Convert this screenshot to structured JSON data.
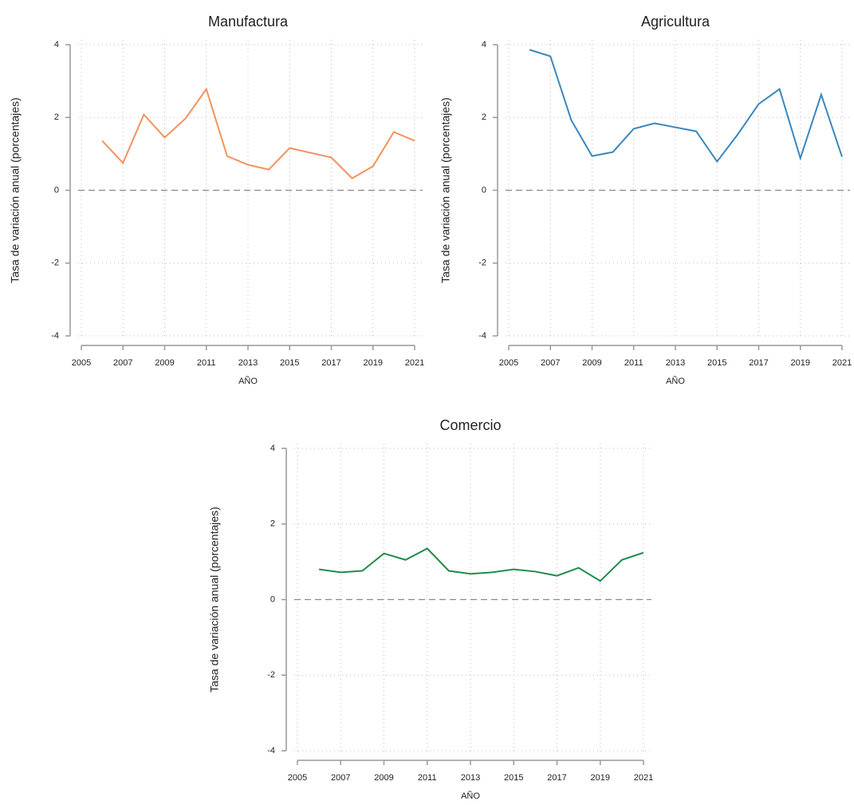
{
  "chart_data": [
    {
      "type": "line",
      "title": "Manufactura",
      "x_label": "AÑO",
      "y_label": "Tasa de variación anual (porcentajes)",
      "x": [
        2006,
        2007,
        2008,
        2009,
        2010,
        2011,
        2012,
        2013,
        2014,
        2015,
        2016,
        2017,
        2018,
        2019,
        2020,
        2021
      ],
      "values": [
        1.36,
        0.75,
        2.08,
        1.45,
        1.97,
        2.78,
        0.94,
        0.7,
        0.57,
        1.16,
        1.03,
        0.9,
        0.33,
        0.66,
        1.6,
        1.36
      ],
      "color": "#f4925e",
      "xlim": [
        2005,
        2021
      ],
      "xticks": [
        2005,
        2007,
        2009,
        2011,
        2013,
        2015,
        2017,
        2019,
        2021
      ],
      "ylim": [
        -4,
        4
      ],
      "yticks": [
        -4,
        -2,
        0,
        2,
        4
      ],
      "grid": true,
      "reference_line": 0
    },
    {
      "type": "line",
      "title": "Agricultura",
      "x_label": "AÑO",
      "y_label": "Tasa de variación anual (porcentajes)",
      "x": [
        2006,
        2007,
        2008,
        2009,
        2010,
        2011,
        2012,
        2013,
        2014,
        2015,
        2016,
        2017,
        2018,
        2019,
        2020,
        2021
      ],
      "values": [
        3.86,
        3.68,
        1.93,
        0.94,
        1.05,
        1.69,
        1.84,
        1.73,
        1.62,
        0.79,
        1.54,
        2.37,
        2.78,
        0.88,
        2.63,
        0.92
      ],
      "color": "#3a87be",
      "xlim": [
        2005,
        2021
      ],
      "xticks": [
        2005,
        2007,
        2009,
        2011,
        2013,
        2015,
        2017,
        2019,
        2021
      ],
      "ylim": [
        -4,
        4
      ],
      "yticks": [
        -4,
        -2,
        0,
        2,
        4
      ],
      "grid": true,
      "reference_line": 0
    },
    {
      "type": "line",
      "title": "Comercio",
      "x_label": "AÑO",
      "y_label": "Tasa de variación anual (porcentajes)",
      "x": [
        2006,
        2007,
        2008,
        2009,
        2010,
        2011,
        2012,
        2013,
        2014,
        2015,
        2016,
        2017,
        2018,
        2019,
        2020,
        2021
      ],
      "values": [
        0.8,
        0.72,
        0.76,
        1.22,
        1.05,
        1.35,
        0.76,
        0.68,
        0.72,
        0.8,
        0.74,
        0.63,
        0.84,
        0.49,
        1.05,
        1.24
      ],
      "color": "#1f8c4a",
      "xlim": [
        2005,
        2021
      ],
      "xticks": [
        2005,
        2007,
        2009,
        2011,
        2013,
        2015,
        2017,
        2019,
        2021
      ],
      "ylim": [
        -4,
        4
      ],
      "yticks": [
        -4,
        -2,
        0,
        2,
        4
      ],
      "grid": true,
      "reference_line": 0
    }
  ]
}
